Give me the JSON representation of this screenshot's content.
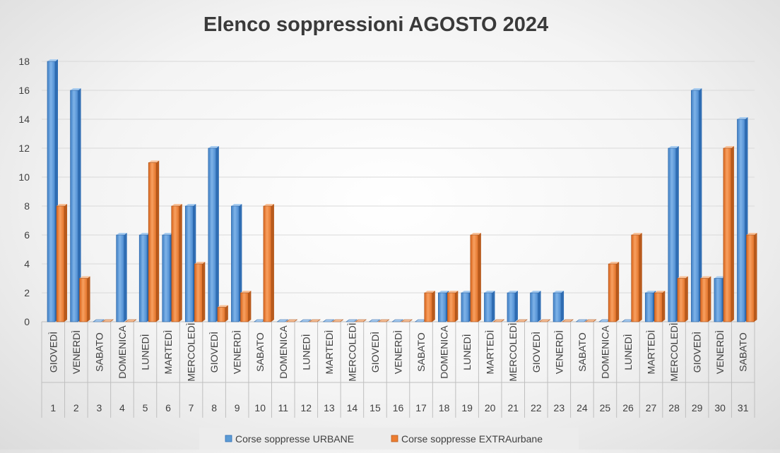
{
  "chart_data": {
    "type": "bar",
    "title": "Elenco soppressioni AGOSTO 2024",
    "xlabel": "",
    "ylabel": "",
    "ylim": [
      0,
      18
    ],
    "yticks": [
      0,
      2,
      4,
      6,
      8,
      10,
      12,
      14,
      16,
      18
    ],
    "grid": true,
    "legend_position": "bottom",
    "days": [
      "1",
      "2",
      "3",
      "4",
      "5",
      "6",
      "7",
      "8",
      "9",
      "10",
      "11",
      "12",
      "13",
      "14",
      "15",
      "16",
      "17",
      "18",
      "19",
      "20",
      "21",
      "22",
      "23",
      "24",
      "25",
      "26",
      "27",
      "28",
      "29",
      "30",
      "31"
    ],
    "weekdays": [
      "GIOVEDÌ",
      "VENERDÌ",
      "SABATO",
      "DOMENICA",
      "LUNEDÌ",
      "MARTEDÌ",
      "MERCOLEDÌ",
      "GIOVEDÌ",
      "VENERDÌ",
      "SABATO",
      "DOMENICA",
      "LUNEDÌ",
      "MARTEDÌ",
      "MERCOLEDÌ",
      "GIOVEDÌ",
      "VENERDÌ",
      "SABATO",
      "DOMENICA",
      "LUNEDÌ",
      "MARTEDÌ",
      "MERCOLEDÌ",
      "GIOVEDÌ",
      "VENERDÌ",
      "SABATO",
      "DOMENICA",
      "LUNEDÌ",
      "MARTEDÌ",
      "MERCOLEDÌ",
      "GIOVEDÌ",
      "VENERDÌ",
      "SABATO"
    ],
    "series": [
      {
        "name": "Corse soppresse URBANE",
        "color": "#5b9bd5",
        "values": [
          18,
          16,
          0,
          6,
          6,
          6,
          8,
          12,
          8,
          0,
          0,
          0,
          0,
          0,
          0,
          0,
          0,
          2,
          2,
          2,
          2,
          2,
          2,
          0,
          0,
          0,
          2,
          12,
          16,
          3,
          14
        ]
      },
      {
        "name": "Corse soppresse EXTRAurbane",
        "color": "#ed7d31",
        "values": [
          8,
          3,
          0,
          0,
          11,
          8,
          4,
          1,
          2,
          8,
          0,
          0,
          0,
          0,
          0,
          0,
          2,
          2,
          6,
          0,
          0,
          0,
          0,
          0,
          4,
          6,
          2,
          3,
          3,
          12,
          6
        ]
      }
    ]
  }
}
